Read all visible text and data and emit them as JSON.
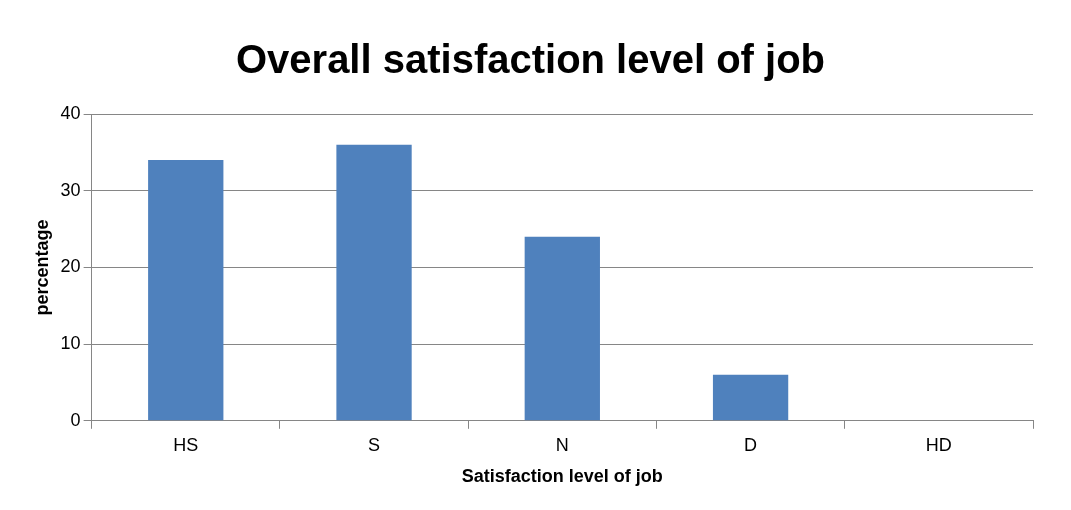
{
  "chart_data": {
    "type": "bar",
    "title": "Overall satisfaction level of job",
    "xlabel": "Satisfaction level of job",
    "ylabel": "percentage",
    "categories": [
      "HS",
      "S",
      "N",
      "D",
      "HD"
    ],
    "values": [
      34,
      36,
      24,
      6,
      0
    ],
    "color": "#4f81bd",
    "ylim": [
      0,
      40
    ],
    "yticks": [
      0,
      10,
      20,
      30,
      40
    ],
    "grid": "y"
  }
}
